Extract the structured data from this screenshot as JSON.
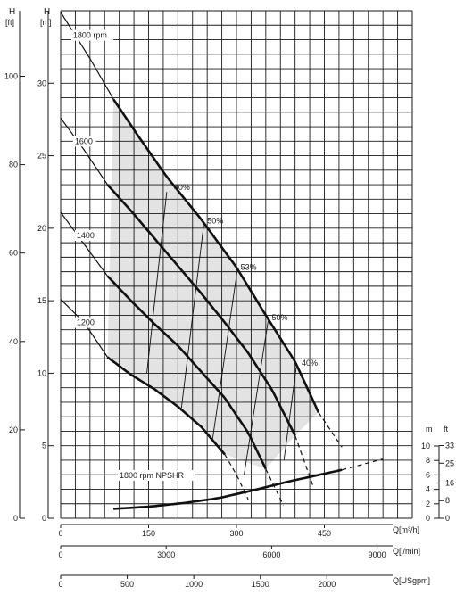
{
  "chart_data": {
    "type": "line",
    "colors": {
      "grid": "#1a1a1a",
      "curve": "#111111",
      "region": "#e3e3e3",
      "axis": "#1a1a1a"
    },
    "axes": {
      "h_m": {
        "unit": "[m]",
        "label": "H",
        "ticks": [
          0,
          5,
          10,
          15,
          20,
          25,
          30
        ],
        "ylim": [
          0,
          35
        ]
      },
      "h_ft": {
        "unit": "[ft]",
        "label": "H",
        "ticks": [
          0,
          20,
          40,
          60,
          80,
          100
        ]
      },
      "q_m3h": {
        "label": "Q[m³/h]",
        "ticks": [
          0,
          150,
          300,
          450
        ],
        "xlim": [
          0,
          600
        ]
      },
      "q_lmin": {
        "label": "Q[l/min]",
        "ticks": [
          0,
          3000,
          6000,
          9000
        ]
      },
      "q_usgpm": {
        "label": "Q[USgpm]",
        "ticks": [
          0,
          500,
          1000,
          1500,
          2000
        ]
      },
      "npsh_m": {
        "label": "m",
        "ticks": [
          0,
          2,
          4,
          6,
          8,
          10
        ]
      },
      "npsh_ft": {
        "label": "ft",
        "ticks": [
          0,
          8,
          16,
          25,
          33
        ]
      }
    },
    "series": [
      {
        "name": "1800 rpm",
        "kind": "head",
        "x": [
          0,
          50,
          90,
          130,
          180,
          240,
          300,
          350,
          400,
          440,
          480
        ],
        "y": [
          34.9,
          31.7,
          28.9,
          26.5,
          23.6,
          20.6,
          17.3,
          14.0,
          10.8,
          7.3,
          4.9
        ],
        "thick_from": 90,
        "thick_to": 440,
        "label_text": "1800 rpm"
      },
      {
        "name": "1600",
        "kind": "head",
        "x": [
          0,
          40,
          80,
          120,
          160,
          200,
          240,
          280,
          320,
          360,
          400,
          430
        ],
        "y": [
          27.6,
          25.4,
          23.0,
          21.2,
          19.3,
          17.4,
          15.5,
          13.5,
          11.4,
          8.9,
          5.7,
          2.3
        ],
        "thick_from": 80,
        "thick_to": 400,
        "label_text": "1600"
      },
      {
        "name": "1400",
        "kind": "head",
        "x": [
          0,
          40,
          80,
          120,
          160,
          200,
          240,
          280,
          320,
          350,
          380
        ],
        "y": [
          21.1,
          18.9,
          16.7,
          15.0,
          13.4,
          11.9,
          10.1,
          8.3,
          5.9,
          3.4,
          0.9
        ],
        "thick_from": 80,
        "thick_to": 350,
        "label_text": "1400"
      },
      {
        "name": "1200",
        "kind": "head",
        "x": [
          0,
          40,
          80,
          120,
          160,
          200,
          240,
          280,
          300,
          320
        ],
        "y": [
          15.1,
          13.5,
          11.1,
          9.9,
          8.9,
          7.7,
          6.3,
          4.4,
          3.0,
          1.3
        ],
        "thick_from": 80,
        "thick_to": 280,
        "label_text": "1200"
      },
      {
        "name": "1800 rpm NPSHR",
        "kind": "npsh",
        "x": [
          90,
          150,
          210,
          270,
          330,
          390,
          480,
          550
        ],
        "y": [
          1.3,
          1.6,
          2.1,
          2.8,
          3.9,
          5.1,
          6.7,
          8.2
        ],
        "thick_to": 480,
        "label_text": "1800 rpm NPSHR"
      }
    ],
    "efficiency_lines": [
      {
        "label": "40%",
        "x": [
          147,
          181
        ],
        "y": [
          10.0,
          22.5
        ]
      },
      {
        "label": "50%",
        "x": [
          206,
          244
        ],
        "y": [
          7.6,
          20.2
        ]
      },
      {
        "label": "53%",
        "x": [
          259,
          301
        ],
        "y": [
          5.4,
          17.0
        ]
      },
      {
        "label": "50%",
        "x": [
          313,
          354
        ],
        "y": [
          3.0,
          13.6
        ]
      },
      {
        "label": "40%",
        "x": [
          381,
          402
        ],
        "y": [
          4.0,
          10.4
        ]
      }
    ]
  }
}
